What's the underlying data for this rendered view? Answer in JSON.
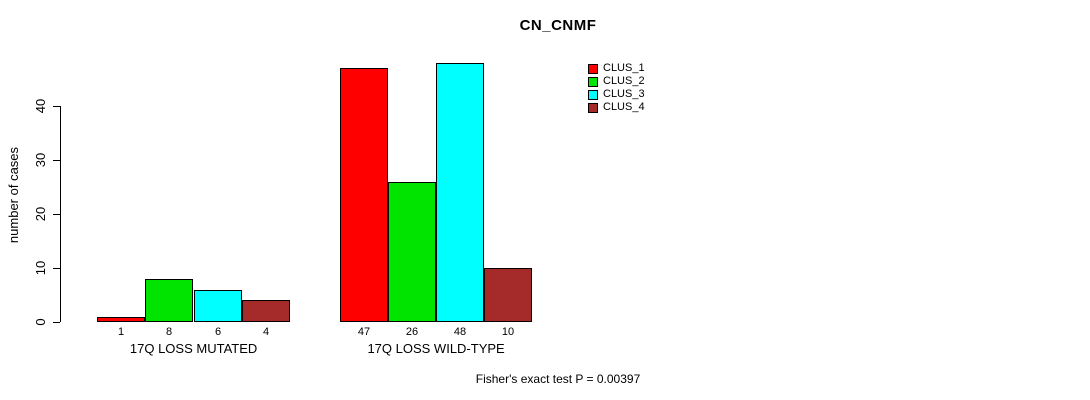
{
  "chart_data": {
    "type": "bar",
    "title": "CN_CNMF",
    "ylabel": "number of cases",
    "xlabel": "",
    "footer": "Fisher's exact test P = 0.00397",
    "groups": [
      "17Q LOSS MUTATED",
      "17Q LOSS WILD-TYPE"
    ],
    "series": [
      {
        "name": "CLUS_1",
        "color": "#FF0000",
        "values": [
          1,
          47
        ]
      },
      {
        "name": "CLUS_2",
        "color": "#00E400",
        "values": [
          8,
          26
        ]
      },
      {
        "name": "CLUS_3",
        "color": "#00FFFF",
        "values": [
          6,
          48
        ]
      },
      {
        "name": "CLUS_4",
        "color": "#A52A2A",
        "values": [
          4,
          10
        ]
      }
    ],
    "bar_value_labels": [
      [
        1,
        8,
        6,
        4
      ],
      [
        47,
        26,
        48,
        10
      ]
    ],
    "yticks": [
      0,
      10,
      20,
      30,
      40
    ],
    "ylim": [
      0,
      40
    ],
    "grid": false,
    "legend_position": "top-right",
    "axis_color": "#000000",
    "bar_border_color": "#000000"
  }
}
